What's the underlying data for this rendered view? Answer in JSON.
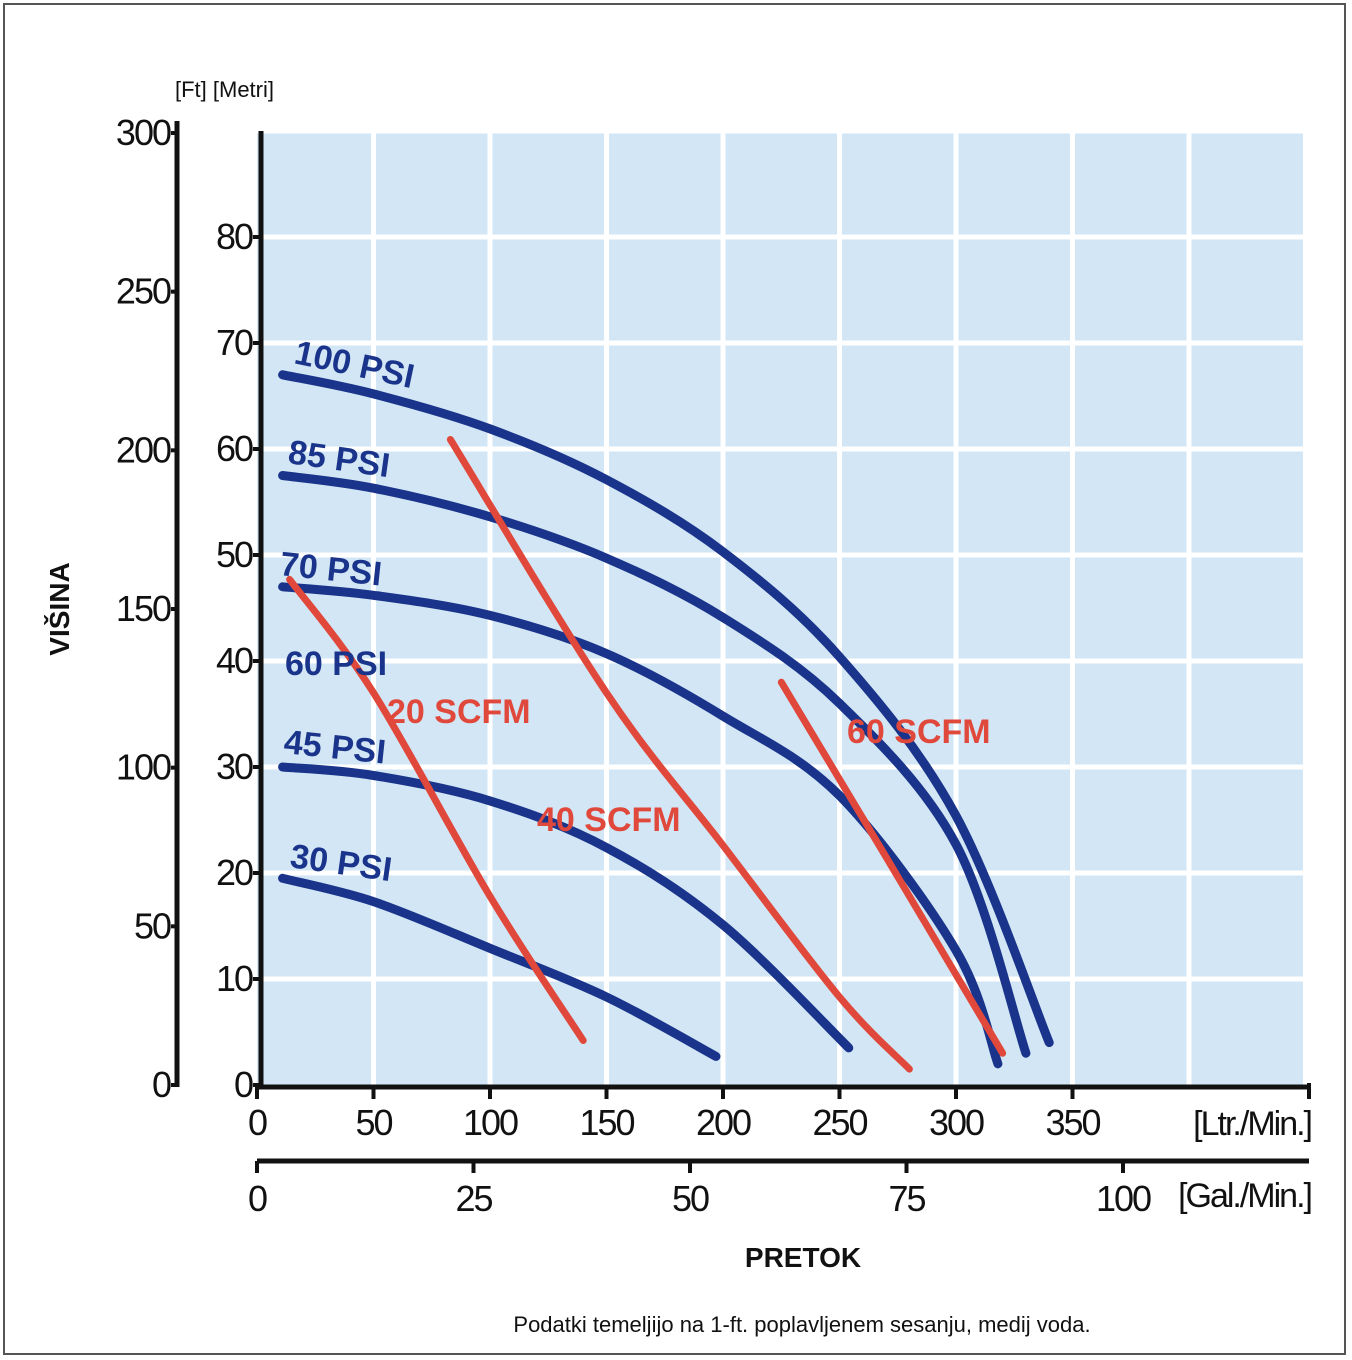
{
  "chart_data": {
    "type": "line",
    "xlabel": "PRETOK",
    "ylabel": "VIŠINA",
    "y_units_label": "[Ft] [Metri]",
    "footnote": "Podatki temeljijo na 1-ft. poplavljenem sesanju, medij voda.",
    "x_axis_primary": {
      "unit": "[Ltr./Min.]",
      "ticks": [
        "0",
        "50",
        "100",
        "150",
        "200",
        "250",
        "300",
        "350"
      ],
      "xlim": [
        0,
        450
      ]
    },
    "x_axis_secondary": {
      "unit": "[Gal./Min.]",
      "ticks": [
        "0",
        "25",
        "50",
        "75",
        "100"
      ]
    },
    "y_axis_ft": {
      "ticks": [
        "300",
        "250",
        "200",
        "150",
        "100",
        "50",
        "0"
      ]
    },
    "y_axis_m": {
      "ticks": [
        "80",
        "70",
        "60",
        "50",
        "40",
        "30",
        "20",
        "10",
        "0"
      ],
      "ylim": [
        0,
        90
      ]
    },
    "pressure_series": [
      {
        "name": "100 PSI",
        "points": [
          [
            11,
            67
          ],
          [
            50,
            65.2
          ],
          [
            100,
            61.9
          ],
          [
            150,
            57.1
          ],
          [
            200,
            50.3
          ],
          [
            250,
            40.4
          ],
          [
            300,
            25.4
          ],
          [
            340,
            4
          ]
        ]
      },
      {
        "name": "85 PSI",
        "points": [
          [
            11,
            57.5
          ],
          [
            50,
            56.3
          ],
          [
            100,
            53.6
          ],
          [
            150,
            49.7
          ],
          [
            200,
            44.1
          ],
          [
            250,
            36
          ],
          [
            300,
            22.7
          ],
          [
            330,
            3
          ]
        ]
      },
      {
        "name": "70 PSI",
        "points": [
          [
            11,
            47
          ],
          [
            50,
            46.2
          ],
          [
            100,
            44.3
          ],
          [
            150,
            40.7
          ],
          [
            200,
            34.8
          ],
          [
            250,
            27.3
          ],
          [
            300,
            12.7
          ],
          [
            318,
            2
          ]
        ]
      },
      {
        "name": "45 PSI",
        "points": [
          [
            11,
            30
          ],
          [
            50,
            29.2
          ],
          [
            100,
            26.8
          ],
          [
            150,
            22.4
          ],
          [
            200,
            15.1
          ],
          [
            254,
            3.5
          ]
        ]
      },
      {
        "name": "30 PSI",
        "points": [
          [
            11,
            19.5
          ],
          [
            50,
            17.3
          ],
          [
            100,
            12.9
          ],
          [
            150,
            8.3
          ],
          [
            197,
            2.7
          ]
        ]
      }
    ],
    "air_series": [
      {
        "name": "20 SCFM",
        "points": [
          [
            14,
            47.7
          ],
          [
            50,
            37
          ],
          [
            100,
            17.8
          ],
          [
            140,
            4.2
          ]
        ]
      },
      {
        "name": "40 SCFM",
        "points": [
          [
            83,
            60.9
          ],
          [
            150,
            37
          ],
          [
            200,
            22.6
          ],
          [
            250,
            8.3
          ],
          [
            280,
            1.5
          ]
        ]
      },
      {
        "name": "60 SCFM",
        "points": [
          [
            225,
            38
          ],
          [
            270,
            21.5
          ],
          [
            320,
            3
          ]
        ]
      }
    ],
    "extra_label": "60 PSI",
    "colors": {
      "plot_bg": "#d2e6f5",
      "grid": "#ffffff",
      "psi": "#19348a",
      "scfm": "#e0483b",
      "axis": "#111111"
    }
  }
}
